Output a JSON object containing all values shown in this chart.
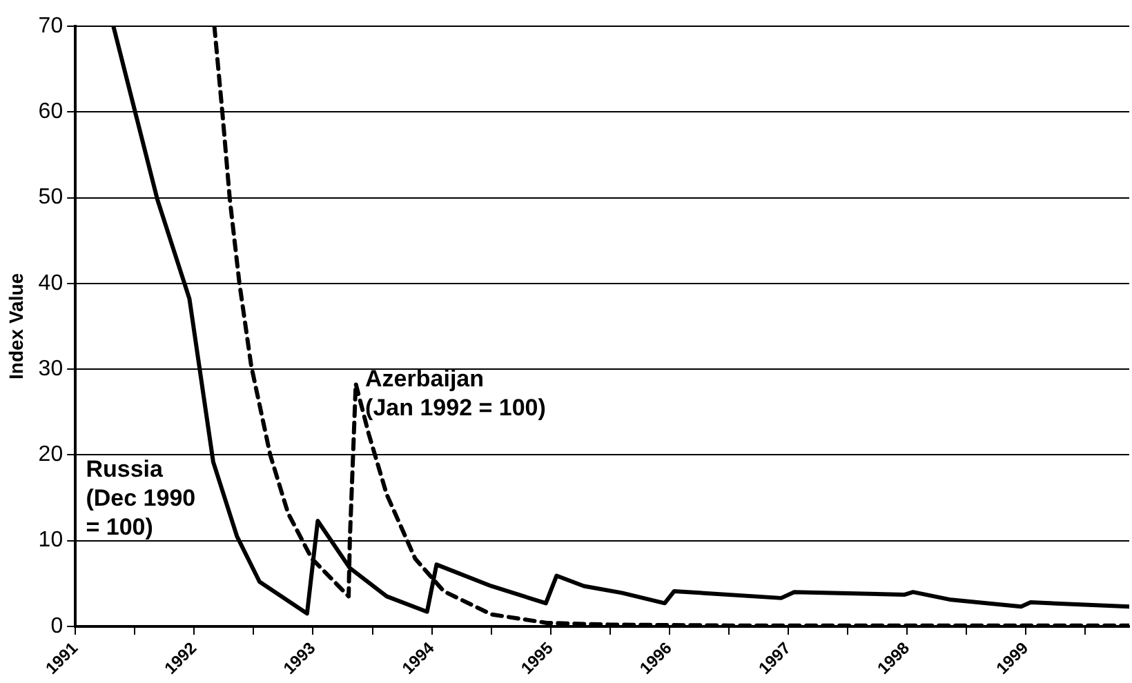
{
  "chart_data": {
    "type": "line",
    "ylabel": "Index Value",
    "xlim": [
      1991,
      1999.87
    ],
    "xticks": [
      1991,
      {
        "value": 1991.5,
        "label": null
      },
      1992,
      {
        "value": 1992.5,
        "label": null
      },
      1993,
      {
        "value": 1993.5,
        "label": null
      },
      1994,
      {
        "value": 1994.5,
        "label": null
      },
      1995,
      {
        "value": 1995.5,
        "label": null
      },
      1996,
      {
        "value": 1996.5,
        "label": null
      },
      1997,
      {
        "value": 1997.5,
        "label": null
      },
      1998,
      {
        "value": 1998.5,
        "label": null
      },
      1999,
      {
        "value": 1999.5,
        "label": null
      }
    ],
    "ylim": [
      0,
      70
    ],
    "yticks": [
      0,
      10,
      20,
      30,
      40,
      50,
      60,
      70
    ],
    "grid": "y",
    "legend": false,
    "marker": "none",
    "series": [
      {
        "name": "Russia\n(Dec 1990\n= 100)",
        "color": "#000000",
        "line_style": "solid",
        "x": [
          1991.32,
          1991.69,
          1991.96,
          1992.16,
          1992.36,
          1992.55,
          1992.95,
          1993.04,
          1993.31,
          1993.62,
          1993.96,
          1994.04,
          1994.5,
          1994.96,
          1995.05,
          1995.28,
          1995.6,
          1995.96,
          1996.04,
          1996.94,
          1997.05,
          1997.98,
          1998.05,
          1998.37,
          1998.96,
          1999.04,
          1999.87
        ],
        "values": [
          70,
          49.8,
          38.2,
          19.2,
          10.5,
          5.2,
          1.5,
          12.3,
          6.8,
          3.5,
          1.7,
          7.2,
          4.7,
          2.7,
          5.9,
          4.7,
          3.9,
          2.7,
          4.1,
          3.3,
          4.0,
          3.7,
          4.0,
          3.1,
          2.3,
          2.8,
          2.3
        ]
      },
      {
        "name": "Azerbaijan\n(Jan 1992 = 100)",
        "color": "#000000",
        "line_style": "dashed",
        "x": [
          1992.17,
          1992.24,
          1992.3,
          1992.38,
          1992.48,
          1992.64,
          1992.79,
          1992.99,
          1993.3,
          1993.31,
          1993.36,
          1993.47,
          1993.62,
          1993.86,
          1994.1,
          1994.5,
          1994.97,
          1995.5,
          1996.5,
          1997.5,
          1998.5,
          1999.87
        ],
        "values": [
          70,
          59.5,
          49.8,
          40.1,
          30.4,
          20,
          13.2,
          7.9,
          3.5,
          10,
          28.3,
          22.4,
          15.4,
          7.9,
          4.1,
          1.4,
          0.4,
          0.2,
          0.1,
          0.1,
          0.1,
          0.1
        ]
      }
    ]
  }
}
